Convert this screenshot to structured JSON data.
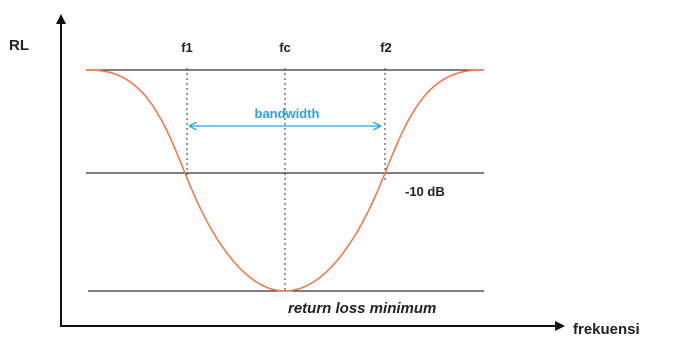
{
  "axes": {
    "y_label": "RL",
    "x_label": "frekuensi"
  },
  "markers": {
    "f1": "f1",
    "fc": "fc",
    "f2": "f2"
  },
  "annotations": {
    "bandwidth": "bandwidth",
    "threshold": "-10 dB",
    "minimum": "return loss minimum"
  },
  "colors": {
    "curve": "#f07a4a",
    "bandwidth": "#29a3e6",
    "lines": "#333333",
    "axis": "#111111"
  }
}
